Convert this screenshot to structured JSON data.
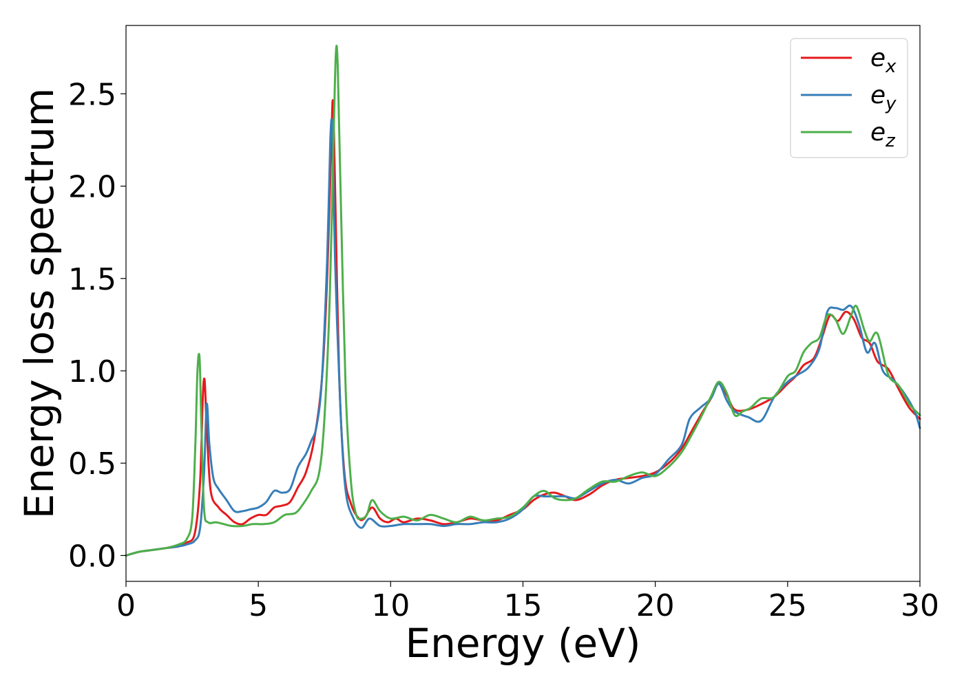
{
  "chart_data": {
    "type": "line",
    "title": "",
    "xlabel": "Energy (eV)",
    "ylabel": "Energy loss spectrum",
    "xlim": [
      0,
      30
    ],
    "ylim": [
      -0.14,
      2.87
    ],
    "xticks": [
      0,
      5,
      10,
      15,
      20,
      25,
      30
    ],
    "yticks": [
      0.0,
      0.5,
      1.0,
      1.5,
      2.0,
      2.5
    ],
    "xtick_labels": [
      "0",
      "5",
      "10",
      "15",
      "20",
      "25",
      "30"
    ],
    "ytick_labels": [
      "0.0",
      "0.5",
      "1.0",
      "1.5",
      "2.0",
      "2.5"
    ],
    "grid": false,
    "legend": "top-right",
    "series": [
      {
        "name": "e_x",
        "label_base": "e",
        "label_sub": "x",
        "color": "#e41a1c",
        "x": [
          0,
          0.5,
          1.0,
          1.5,
          2.0,
          2.3,
          2.6,
          2.8,
          2.9,
          2.97,
          3.05,
          3.2,
          3.5,
          3.8,
          4.1,
          4.4,
          4.7,
          5.0,
          5.3,
          5.6,
          5.9,
          6.2,
          6.5,
          6.8,
          7.1,
          7.4,
          7.6,
          7.75,
          7.82,
          7.9,
          8.05,
          8.25,
          8.5,
          8.8,
          9.0,
          9.3,
          9.6,
          9.9,
          10.2,
          10.5,
          11.0,
          11.5,
          12.0,
          12.5,
          13.0,
          13.5,
          14.0,
          14.5,
          15.0,
          15.4,
          15.8,
          16.2,
          16.6,
          17.0,
          17.5,
          18.0,
          18.5,
          19.0,
          19.5,
          20.0,
          20.5,
          21.0,
          21.4,
          21.8,
          22.1,
          22.4,
          22.7,
          23.0,
          23.5,
          24.0,
          24.5,
          25.0,
          25.3,
          25.6,
          26.0,
          26.3,
          26.6,
          26.9,
          27.2,
          27.5,
          27.8,
          28.1,
          28.4,
          28.8,
          29.2,
          29.6,
          30.0
        ],
        "y": [
          0.0,
          0.02,
          0.03,
          0.04,
          0.05,
          0.07,
          0.12,
          0.4,
          0.85,
          0.95,
          0.7,
          0.35,
          0.26,
          0.22,
          0.18,
          0.17,
          0.2,
          0.22,
          0.22,
          0.26,
          0.27,
          0.29,
          0.37,
          0.45,
          0.62,
          0.95,
          1.5,
          2.2,
          2.46,
          2.0,
          1.0,
          0.45,
          0.28,
          0.2,
          0.2,
          0.26,
          0.2,
          0.18,
          0.2,
          0.18,
          0.2,
          0.19,
          0.17,
          0.18,
          0.2,
          0.19,
          0.19,
          0.22,
          0.25,
          0.3,
          0.33,
          0.34,
          0.32,
          0.3,
          0.33,
          0.38,
          0.41,
          0.42,
          0.43,
          0.45,
          0.5,
          0.58,
          0.68,
          0.78,
          0.85,
          0.94,
          0.87,
          0.79,
          0.79,
          0.82,
          0.86,
          0.93,
          0.97,
          1.03,
          1.07,
          1.18,
          1.3,
          1.27,
          1.32,
          1.28,
          1.18,
          1.15,
          1.05,
          1.01,
          0.9,
          0.8,
          0.74
        ]
      },
      {
        "name": "e_y",
        "label_base": "e",
        "label_sub": "y",
        "color": "#377eb8",
        "x": [
          0,
          0.5,
          1.0,
          1.5,
          2.0,
          2.3,
          2.6,
          2.8,
          2.95,
          3.05,
          3.15,
          3.3,
          3.5,
          3.8,
          4.1,
          4.4,
          4.7,
          5.0,
          5.3,
          5.6,
          5.9,
          6.2,
          6.5,
          6.8,
          7.0,
          7.2,
          7.4,
          7.6,
          7.72,
          7.8,
          7.9,
          8.1,
          8.3,
          8.6,
          8.9,
          9.2,
          9.6,
          10.0,
          10.5,
          11.0,
          11.5,
          12.0,
          12.5,
          13.0,
          13.5,
          14.0,
          14.5,
          15.0,
          15.4,
          15.8,
          16.2,
          16.6,
          17.0,
          17.5,
          18.0,
          18.5,
          19.0,
          19.5,
          20.0,
          20.5,
          21.0,
          21.3,
          21.7,
          22.1,
          22.4,
          22.7,
          23.0,
          23.5,
          24.0,
          24.5,
          25.0,
          25.4,
          25.8,
          26.2,
          26.5,
          26.8,
          27.1,
          27.4,
          27.7,
          28.0,
          28.3,
          28.6,
          29.0,
          29.4,
          29.8,
          30.0
        ],
        "y": [
          0.0,
          0.02,
          0.03,
          0.04,
          0.05,
          0.06,
          0.08,
          0.15,
          0.45,
          0.82,
          0.6,
          0.42,
          0.36,
          0.3,
          0.24,
          0.24,
          0.25,
          0.26,
          0.29,
          0.35,
          0.34,
          0.36,
          0.48,
          0.55,
          0.62,
          0.7,
          0.95,
          1.6,
          2.25,
          2.3,
          1.6,
          0.8,
          0.35,
          0.2,
          0.15,
          0.2,
          0.16,
          0.16,
          0.17,
          0.17,
          0.17,
          0.16,
          0.17,
          0.17,
          0.18,
          0.18,
          0.2,
          0.25,
          0.32,
          0.32,
          0.32,
          0.32,
          0.31,
          0.35,
          0.39,
          0.41,
          0.39,
          0.42,
          0.44,
          0.52,
          0.6,
          0.74,
          0.8,
          0.85,
          0.93,
          0.84,
          0.78,
          0.75,
          0.73,
          0.86,
          0.94,
          0.98,
          1.02,
          1.12,
          1.32,
          1.34,
          1.33,
          1.35,
          1.25,
          1.1,
          1.15,
          1.0,
          0.95,
          0.88,
          0.78,
          0.69
        ]
      },
      {
        "name": "e_z",
        "label_base": "e",
        "label_sub": "z",
        "color": "#4daf4a",
        "x": [
          0,
          0.5,
          1.0,
          1.5,
          2.0,
          2.3,
          2.5,
          2.62,
          2.7,
          2.78,
          2.85,
          2.95,
          3.1,
          3.4,
          3.7,
          4.0,
          4.4,
          4.8,
          5.2,
          5.6,
          6.0,
          6.4,
          6.7,
          7.0,
          7.3,
          7.5,
          7.7,
          7.85,
          7.93,
          8.0,
          8.12,
          8.3,
          8.5,
          8.7,
          8.9,
          9.1,
          9.3,
          9.6,
          10.0,
          10.5,
          11.0,
          11.5,
          12.0,
          12.5,
          13.0,
          13.5,
          14.0,
          14.5,
          15.0,
          15.4,
          15.8,
          16.2,
          16.6,
          17.0,
          17.5,
          18.0,
          18.5,
          19.0,
          19.5,
          20.0,
          20.5,
          21.0,
          21.4,
          21.8,
          22.1,
          22.4,
          22.7,
          23.0,
          23.3,
          23.6,
          24.0,
          24.5,
          25.0,
          25.3,
          25.6,
          25.9,
          26.2,
          26.5,
          26.8,
          27.1,
          27.4,
          27.6,
          27.9,
          28.1,
          28.4,
          28.8,
          29.2,
          29.6,
          30.0
        ],
        "y": [
          0.0,
          0.02,
          0.03,
          0.04,
          0.06,
          0.09,
          0.2,
          0.6,
          1.0,
          1.07,
          0.7,
          0.25,
          0.18,
          0.18,
          0.17,
          0.16,
          0.16,
          0.17,
          0.17,
          0.18,
          0.22,
          0.23,
          0.28,
          0.35,
          0.45,
          0.75,
          1.4,
          2.3,
          2.72,
          2.65,
          1.9,
          0.9,
          0.4,
          0.22,
          0.2,
          0.22,
          0.3,
          0.24,
          0.2,
          0.21,
          0.19,
          0.22,
          0.2,
          0.18,
          0.21,
          0.19,
          0.2,
          0.21,
          0.26,
          0.32,
          0.35,
          0.31,
          0.3,
          0.31,
          0.36,
          0.4,
          0.4,
          0.43,
          0.45,
          0.43,
          0.48,
          0.56,
          0.66,
          0.77,
          0.86,
          0.94,
          0.88,
          0.76,
          0.78,
          0.8,
          0.85,
          0.86,
          0.97,
          1.0,
          1.1,
          1.15,
          1.18,
          1.3,
          1.28,
          1.2,
          1.3,
          1.35,
          1.22,
          1.16,
          1.2,
          0.98,
          0.92,
          0.82,
          0.76
        ]
      }
    ]
  }
}
